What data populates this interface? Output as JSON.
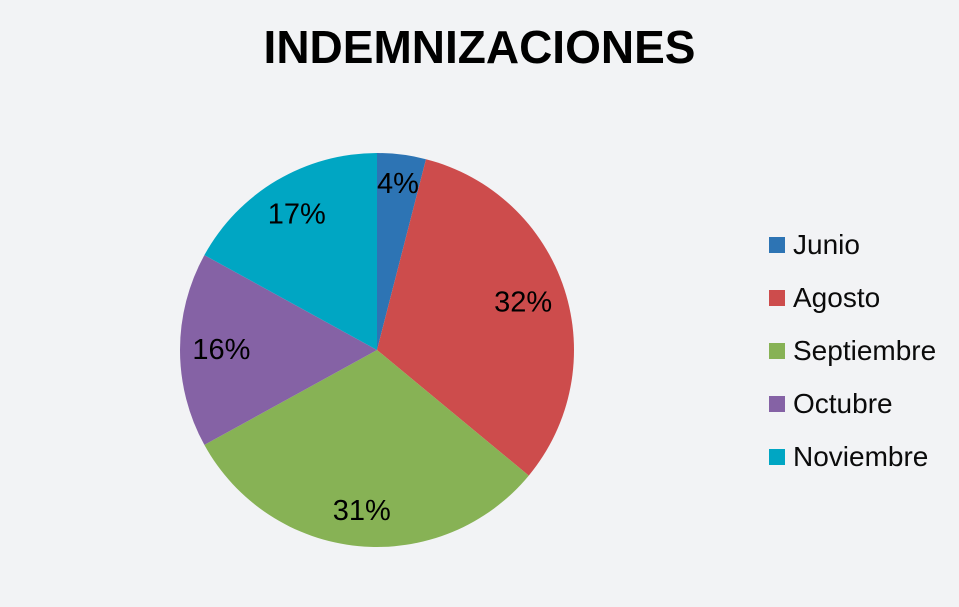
{
  "page": {
    "background": "#F2F3F5"
  },
  "chart_data": {
    "type": "pie",
    "title": "INDEMNIZACIONES",
    "categories": [
      "Junio",
      "Agosto",
      "Septiembre",
      "Octubre",
      "Noviembre"
    ],
    "values": [
      4,
      32,
      31,
      16,
      17
    ],
    "percent_labels": [
      "4%",
      "32%",
      "31%",
      "16%",
      "17%"
    ],
    "colors": [
      "#2D74B4",
      "#CD4C4C",
      "#87B255",
      "#8562A5",
      "#00A6C3"
    ],
    "label_color": "#000000",
    "start_angle_deg": 0,
    "direction": "clockwise",
    "legend_position": "right",
    "label_radius_fractions": [
      0.85,
      0.78,
      0.82,
      0.79,
      0.8
    ]
  }
}
